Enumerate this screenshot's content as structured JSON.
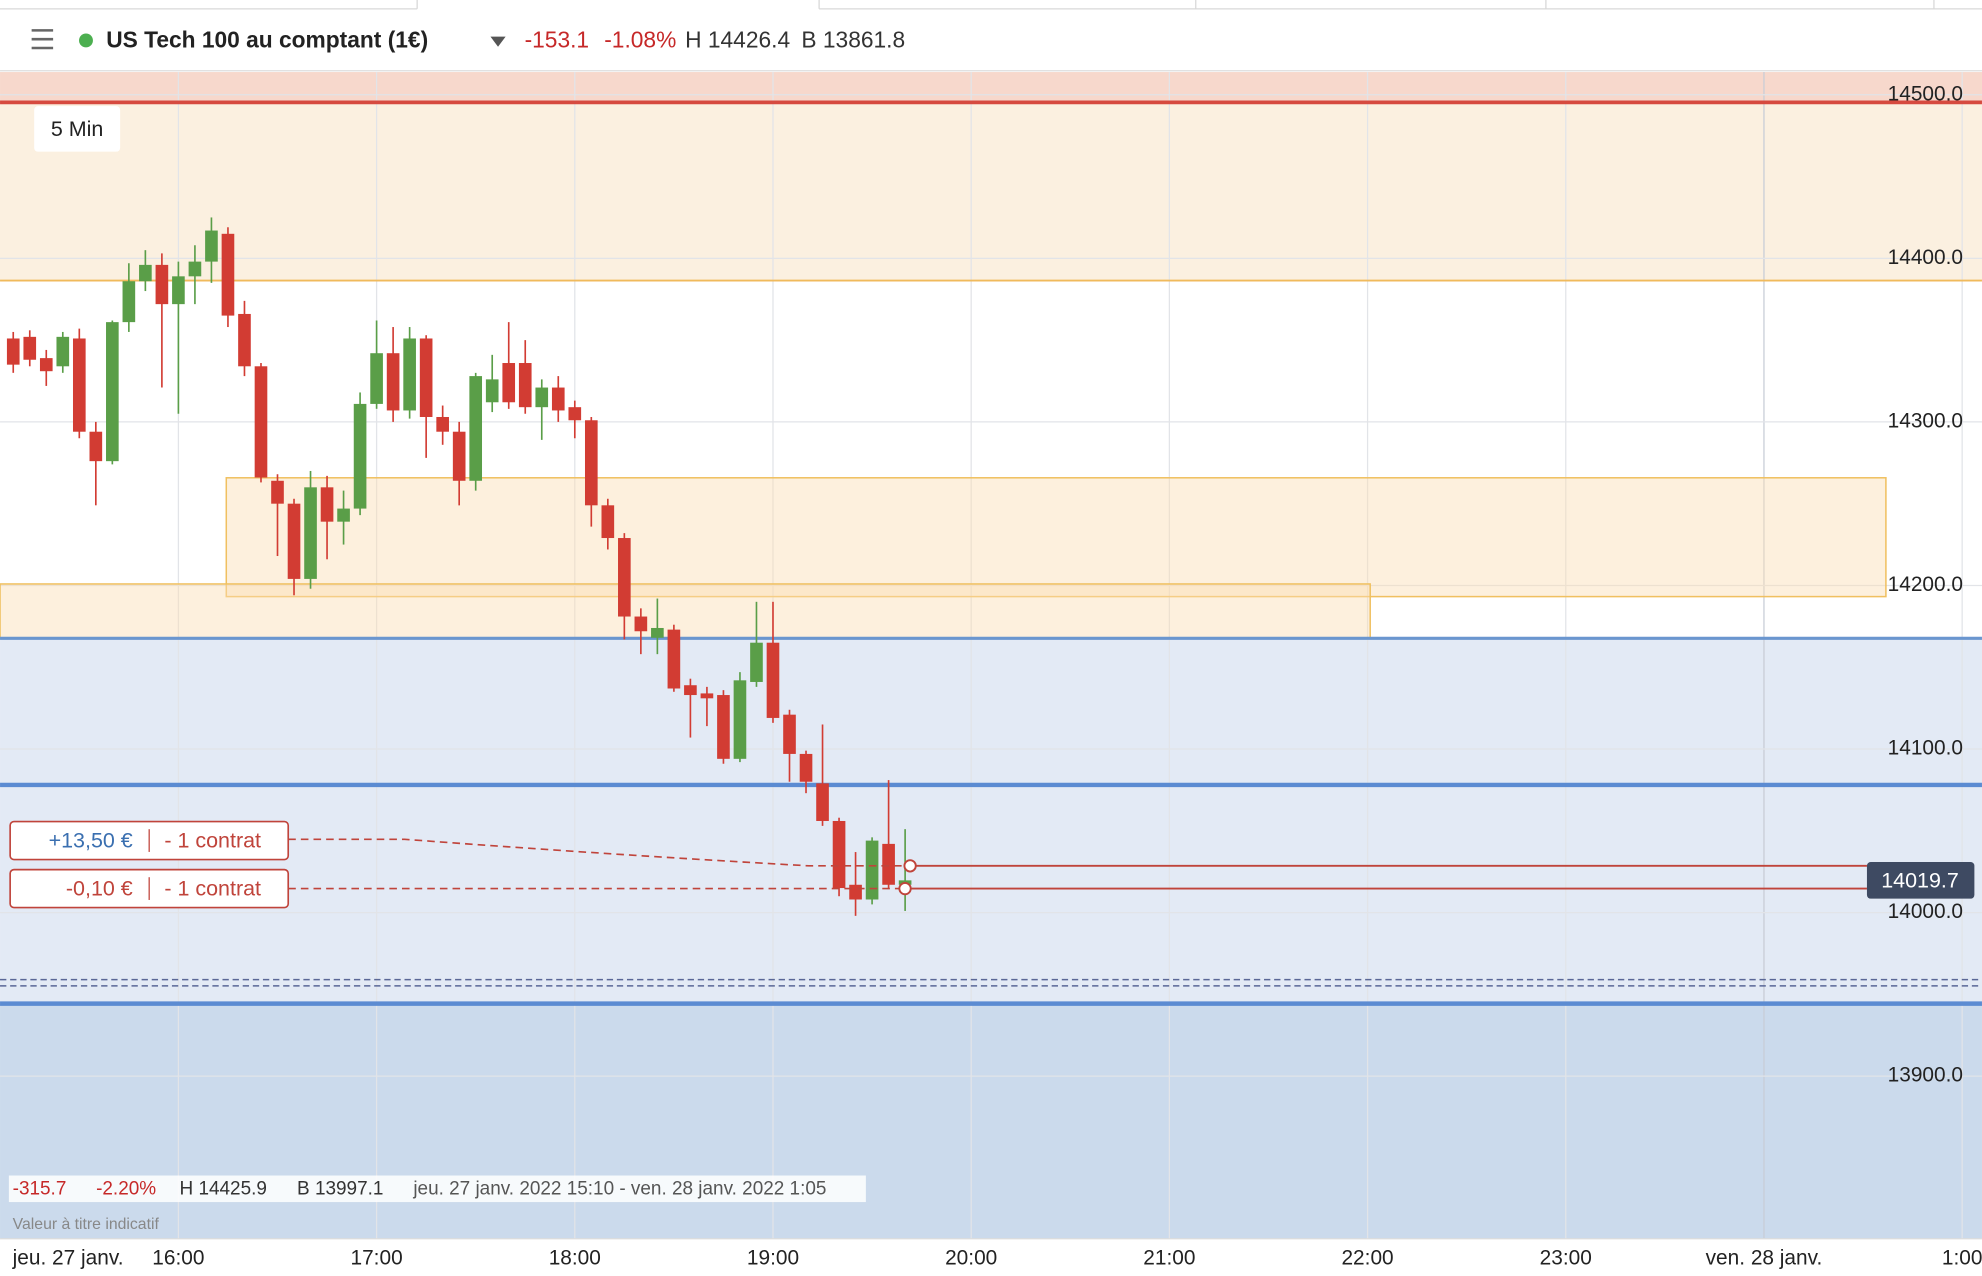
{
  "header": {
    "title": "US Tech 100 au comptant (1€)",
    "change": "-153.1",
    "change_pct": "-1.08%",
    "high": "H 14426.4",
    "low": "B 13861.8"
  },
  "chart_data": {
    "type": "candlestick",
    "timeframe": "5 Min",
    "date_label": "jeu. 27 janv.",
    "x": [
      "15:10",
      "15:15",
      "15:20",
      "15:25",
      "15:30",
      "15:35",
      "15:40",
      "15:45",
      "15:50",
      "15:55",
      "16:00",
      "16:05",
      "16:10",
      "16:15",
      "16:20",
      "16:25",
      "16:30",
      "16:35",
      "16:40",
      "16:45",
      "16:50",
      "16:55",
      "17:00",
      "17:05",
      "17:10",
      "17:15",
      "17:20",
      "17:25",
      "17:30",
      "17:35",
      "17:40",
      "17:45",
      "17:50",
      "17:55",
      "18:00",
      "18:05",
      "18:10",
      "18:15",
      "18:20",
      "18:25",
      "18:30",
      "18:35",
      "18:40",
      "18:45",
      "18:50",
      "18:55",
      "19:00",
      "19:05",
      "19:10",
      "19:15",
      "19:20",
      "19:25",
      "19:30",
      "19:35",
      "19:40"
    ],
    "open": [
      14351,
      14352,
      14339,
      14334,
      14351,
      14294,
      14276,
      14361,
      14386,
      14396,
      14372,
      14389,
      14398,
      14415,
      14366,
      14334,
      14264,
      14250,
      14204,
      14260,
      14239,
      14247,
      14311,
      14342,
      14307,
      14351,
      14303,
      14294,
      14264,
      14312,
      14336,
      14336,
      14309,
      14321,
      14309,
      14301,
      14249,
      14229,
      14181,
      14168,
      14173,
      14139,
      14134,
      14133,
      14094,
      14141,
      14165,
      14121,
      14097,
      14079,
      14056,
      14017,
      14008,
      14042,
      14017
    ],
    "high": [
      14355,
      14356,
      14344,
      14355,
      14357,
      14300,
      14362,
      14397,
      14405,
      14403,
      14398,
      14408,
      14425,
      14419,
      14374,
      14336,
      14268,
      14253,
      14270,
      14267,
      14258,
      14318,
      14362,
      14358,
      14358,
      14353,
      14310,
      14300,
      14330,
      14341,
      14361,
      14350,
      14326,
      14328,
      14313,
      14303,
      14253,
      14232,
      14186,
      14192,
      14176,
      14143,
      14138,
      14136,
      14147,
      14190,
      14190,
      14124,
      14099,
      14115,
      14058,
      14037,
      14046,
      14081,
      14051
    ],
    "low": [
      14330,
      14334,
      14322,
      14330,
      14290,
      14249,
      14274,
      14355,
      14380,
      14321,
      14305,
      14372,
      14385,
      14358,
      14328,
      14263,
      14218,
      14194,
      14198,
      14216,
      14225,
      14243,
      14308,
      14300,
      14302,
      14278,
      14286,
      14249,
      14258,
      14306,
      14308,
      14305,
      14289,
      14300,
      14290,
      14236,
      14222,
      14167,
      14158,
      14158,
      14135,
      14107,
      14114,
      14091,
      14092,
      14138,
      14116,
      14080,
      14073,
      14053,
      14010,
      13998,
      14005,
      14015,
      14001
    ],
    "close": [
      14335,
      14338,
      14331,
      14352,
      14294,
      14276,
      14361,
      14386,
      14396,
      14372,
      14389,
      14398,
      14417,
      14365,
      14334,
      14266,
      14250,
      14204,
      14260,
      14239,
      14247,
      14311,
      14342,
      14307,
      14351,
      14303,
      14294,
      14264,
      14328,
      14326,
      14312,
      14309,
      14321,
      14307,
      14301,
      14249,
      14229,
      14181,
      14172,
      14174,
      14137,
      14133,
      14131,
      14094,
      14142,
      14165,
      14119,
      14097,
      14080,
      14056,
      14015,
      14008,
      14044,
      14017,
      14019.7
    ],
    "up_color": "#5a9e48",
    "down_color": "#d23c33",
    "last_price": 14019.7,
    "xlim": [
      "15:06",
      "1:06"
    ],
    "xticks": [
      "16:00",
      "17:00",
      "18:00",
      "19:00",
      "20:00",
      "21:00",
      "22:00",
      "23:00",
      {
        "value": "0:00",
        "label": "ven. 28 janv."
      },
      "1:00"
    ],
    "ylim": [
      13800.6,
      14513.9
    ],
    "yticks": [
      {
        "value": 14500,
        "label": "14500.0"
      },
      {
        "value": 14400,
        "label": "14400.0"
      },
      {
        "value": 14300,
        "label": "14300.0"
      },
      {
        "value": 14200,
        "label": "14200.0"
      },
      {
        "value": 14100,
        "label": "14100.0"
      },
      {
        "value": 14000,
        "label": "14000.0"
      },
      {
        "value": 13900,
        "label": "13900.0"
      }
    ],
    "grid": true
  },
  "positions": [
    {
      "pnl": "+13,50 €",
      "size": "- 1 contrat"
    },
    {
      "pnl": "-0,10 €",
      "size": "- 1 contrat"
    }
  ],
  "stats": {
    "change": "-315.7",
    "change_pct": "-2.20%",
    "high": "H 14425.9",
    "low": "B 13997.1",
    "range": "jeu. 27 janv. 2022 15:10 - ven. 28 janv. 2022 1:05"
  },
  "note": "Valeur à titre indicatif"
}
